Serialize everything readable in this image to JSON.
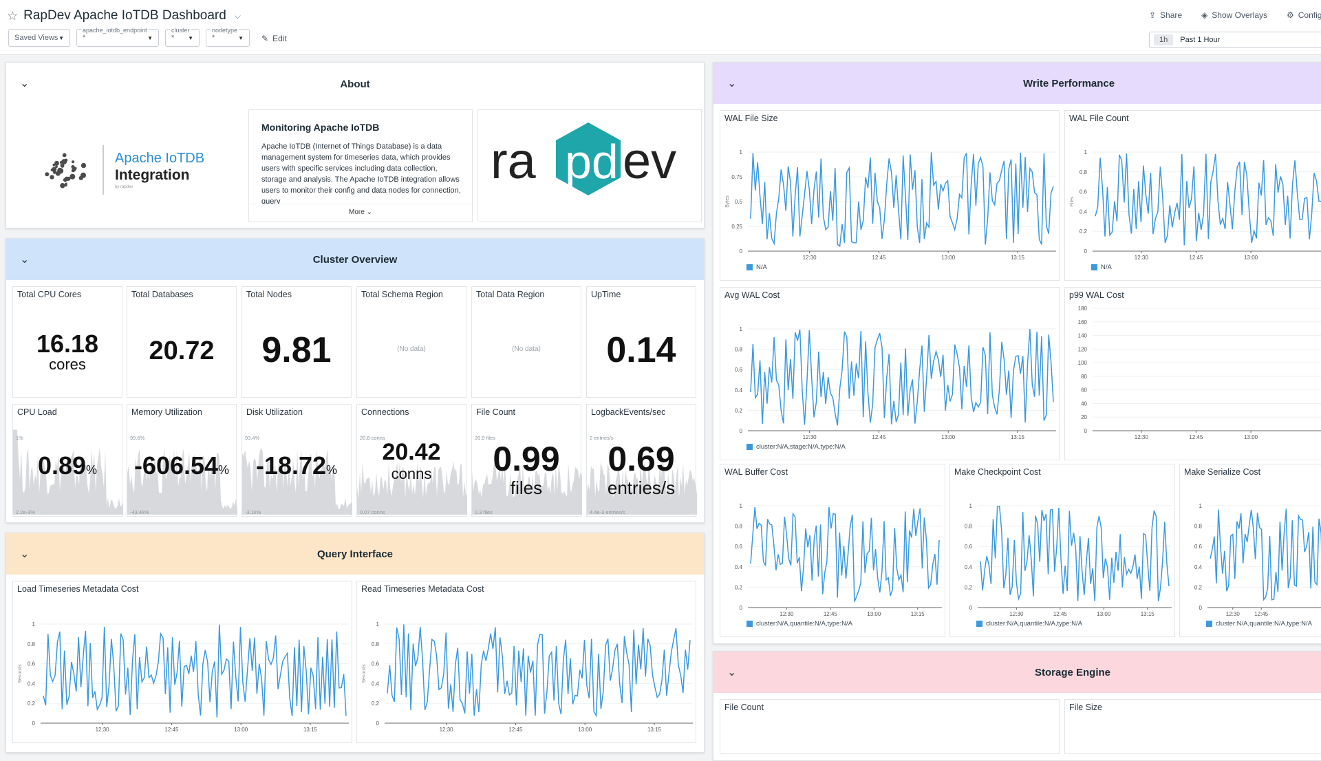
{
  "header": {
    "title": "RapDev Apache IoTDB Dashboard",
    "share": "Share",
    "overlays": "Show Overlays",
    "configure": "Configure",
    "edit": "Edit",
    "saved_views": "Saved Views",
    "vars": [
      {
        "label": "apache_iotdb_endpoint",
        "value": "*"
      },
      {
        "label": "cluster",
        "value": "*"
      },
      {
        "label": "nodetype",
        "value": "*"
      }
    ],
    "time_pill": "1h",
    "time_label": "Past 1 Hour"
  },
  "about": {
    "title": "About",
    "logo_line1": "Apache IoTDB",
    "logo_line2": "Integration",
    "logo_by": "by rapdev",
    "desc_title": "Monitoring Apache IoTDB",
    "desc_text": "Apache IoTDB (Internet of Things Database) is a data management system for timeseries data, which provides users with specific services including data collection, storage and analysis. The Apache IoTDB integration allows users to monitor their config and data nodes for connection, query",
    "more": "More",
    "brand": "rapdev"
  },
  "cluster": {
    "title": "Cluster Overview",
    "stats": [
      {
        "title": "Total CPU Cores",
        "value": "16.18",
        "unit": "cores"
      },
      {
        "title": "Total Databases",
        "value": "20.72",
        "unit": ""
      },
      {
        "title": "Total Nodes",
        "value": "9.81",
        "unit": ""
      },
      {
        "title": "Total Schema Region",
        "value": "",
        "nodata": "(No data)"
      },
      {
        "title": "Total Data Region",
        "value": "",
        "nodata": "(No data)"
      },
      {
        "title": "UpTime",
        "value": "0.14",
        "unit": ""
      }
    ],
    "sparks": [
      {
        "title": "CPU Load",
        "value": "0.89",
        "unit": "%",
        "top": "1%",
        "bottom": "2.2e-3%"
      },
      {
        "title": "Memory Utilization",
        "value": "-606.54",
        "unit": "%",
        "top": "99.6%",
        "bottom": "-43.4k%"
      },
      {
        "title": "Disk Utilization",
        "value": "-18.72",
        "unit": "%",
        "top": "93.4%",
        "bottom": "-3.1k%"
      },
      {
        "title": "Connections",
        "value": "20.42",
        "unit": "conns",
        "top": "20.8 conns",
        "bottom": "0.07 conns"
      },
      {
        "title": "File Count",
        "value": "0.99",
        "unit": "files",
        "top": "20.9 files",
        "bottom": "0.3 files"
      },
      {
        "title": "LogbackEvents/sec",
        "value": "0.69",
        "unit": "entries/s",
        "top": "2 entries/s",
        "bottom": "4.4e-3 entries/s"
      }
    ]
  },
  "query": {
    "title": "Query Interface",
    "charts": [
      {
        "title": "Load Timeseries Metadata Cost",
        "ylabel": "Seconds"
      },
      {
        "title": "Read Timeseries Metadata Cost",
        "ylabel": "Seconds"
      }
    ]
  },
  "write": {
    "title": "Write Performance",
    "charts": [
      {
        "title": "WAL File Size",
        "ylabel": "Bytes",
        "legend": "N/A"
      },
      {
        "title": "WAL File Count",
        "ylabel": "Files",
        "legend": "N/A"
      },
      {
        "title": "Avg WAL Cost",
        "legend": "cluster:N/A,stage:N/A,type:N/A"
      },
      {
        "title": "p99 WAL Cost",
        "legend": ""
      },
      {
        "title": "WAL Buffer Cost",
        "legend": "cluster:N/A,quantile:N/A,type:N/A"
      },
      {
        "title": "Make Checkpoint Cost",
        "legend": "cluster:N/A,quantile:N/A,type:N/A"
      },
      {
        "title": "Make Serialize Cost",
        "legend": "cluster:N/A,quantile:N/A,type:N/A"
      }
    ]
  },
  "storage": {
    "title": "Storage Engine",
    "charts": [
      {
        "title": "File Count"
      },
      {
        "title": "File Size"
      }
    ]
  },
  "xticks": [
    "12:30",
    "12:45",
    "13:00",
    "13:15"
  ],
  "yticks_01": [
    "0",
    "0.2",
    "0.4",
    "0.6",
    "0.8",
    "1"
  ],
  "yticks_quarter": [
    "0",
    "0.25",
    "0.5",
    "0.75",
    "1"
  ],
  "yticks_p99": [
    "0",
    "20",
    "40",
    "60",
    "80",
    "100",
    "120",
    "140",
    "160",
    "180"
  ],
  "colors": {
    "line": "#3b99e0",
    "write": "#e6dbfc",
    "cluster": "#cfe4fb",
    "query": "#fde6c7",
    "storage": "#fcd7de",
    "teal": "#1fa6aa"
  },
  "chart_data": [
    {
      "type": "line",
      "title": "WAL File Size",
      "ylim": [
        0,
        1
      ],
      "ylabel": "Bytes",
      "x": [
        "12:30",
        "12:45",
        "13:00",
        "13:15"
      ],
      "series": [
        {
          "name": "N/A"
        }
      ]
    },
    {
      "type": "line",
      "title": "WAL File Count",
      "ylim": [
        0,
        1
      ],
      "ylabel": "Files",
      "x": [
        "12:30",
        "12:45",
        "13:00"
      ],
      "series": [
        {
          "name": "N/A"
        }
      ]
    },
    {
      "type": "line",
      "title": "Avg WAL Cost",
      "ylim": [
        0,
        1
      ],
      "x": [
        "12:30",
        "12:45",
        "13:00",
        "13:15"
      ],
      "series": [
        {
          "name": "cluster:N/A,stage:N/A,type:N/A"
        }
      ]
    },
    {
      "type": "line",
      "title": "p99 WAL Cost",
      "ylim": [
        0,
        180
      ],
      "x": [
        "12:30",
        "12:45",
        "13:00"
      ]
    },
    {
      "type": "line",
      "title": "WAL Buffer Cost",
      "ylim": [
        0,
        1
      ],
      "x": [
        "12:30",
        "12:45",
        "13:00",
        "13:15"
      ]
    },
    {
      "type": "line",
      "title": "Make Checkpoint Cost",
      "ylim": [
        0,
        1
      ],
      "x": [
        "12:30",
        "12:45",
        "13:00",
        "13:15"
      ]
    },
    {
      "type": "line",
      "title": "Make Serialize Cost",
      "ylim": [
        0,
        1
      ],
      "x": [
        "12:30",
        "12:45"
      ]
    },
    {
      "type": "line",
      "title": "Load Timeseries Metadata Cost",
      "ylim": [
        0,
        1
      ],
      "ylabel": "Seconds",
      "x": [
        "12:30",
        "12:45",
        "13:00",
        "13:15"
      ]
    },
    {
      "type": "line",
      "title": "Read Timeseries Metadata Cost",
      "ylim": [
        0,
        1
      ],
      "ylabel": "Seconds",
      "x": [
        "12:30",
        "12:45",
        "13:00",
        "13:15"
      ]
    }
  ]
}
